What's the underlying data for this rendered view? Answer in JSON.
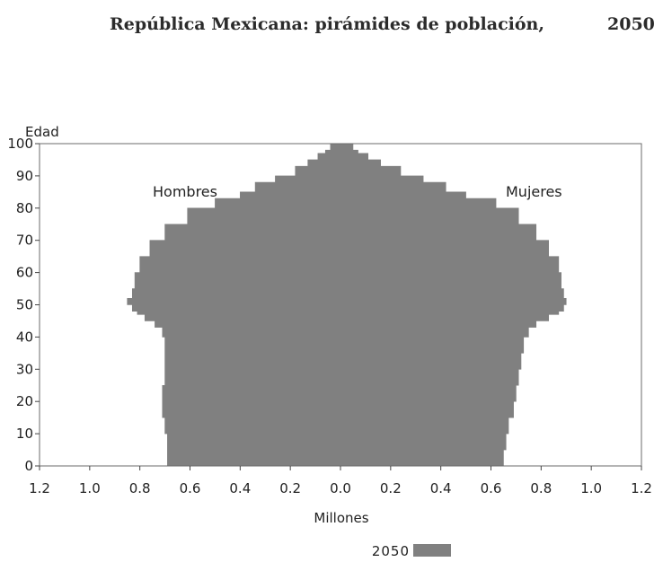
{
  "title": {
    "main": "República Mexicana: pirámides de población,",
    "year": "2050"
  },
  "chart_data": {
    "type": "area",
    "title": "República Mexicana: pirámides de población, 2050",
    "xlabel": "Millones",
    "ylabel": "Edad",
    "xlim": [
      -1.2,
      1.2
    ],
    "ylim": [
      0,
      100
    ],
    "x_ticks": [
      -1.2,
      -1.0,
      -0.8,
      -0.6,
      -0.4,
      -0.2,
      0.0,
      0.2,
      0.4,
      0.6,
      0.8,
      1.0,
      1.2
    ],
    "x_tick_labels": [
      "1.2",
      "1.0",
      "0.8",
      "0.6",
      "0.4",
      "0.2",
      "0.0",
      "0.2",
      "0.4",
      "0.6",
      "0.8",
      "1.0",
      "1.2"
    ],
    "y_ticks": [
      0,
      10,
      20,
      30,
      40,
      50,
      60,
      70,
      80,
      90,
      100
    ],
    "y_tick_labels": [
      "0",
      "10",
      "20",
      "30",
      "40",
      "50",
      "60",
      "70",
      "80",
      "90",
      "100"
    ],
    "annotations": {
      "left": "Hombres",
      "right": "Mujeres"
    },
    "legend": {
      "label": "2050",
      "color": "#808080",
      "position": "bottom"
    },
    "fill_color": "#808080",
    "ages": [
      0,
      5,
      10,
      15,
      20,
      25,
      30,
      35,
      40,
      43,
      45,
      47,
      48,
      50,
      52,
      55,
      60,
      65,
      70,
      75,
      80,
      83,
      85,
      88,
      90,
      93,
      95,
      97,
      98,
      100
    ],
    "series": [
      {
        "name": "Hombres",
        "values": [
          0.69,
          0.69,
          0.7,
          0.71,
          0.71,
          0.7,
          0.7,
          0.7,
          0.71,
          0.74,
          0.78,
          0.81,
          0.83,
          0.85,
          0.83,
          0.82,
          0.8,
          0.76,
          0.7,
          0.61,
          0.5,
          0.4,
          0.34,
          0.26,
          0.18,
          0.13,
          0.09,
          0.06,
          0.04,
          0.01
        ]
      },
      {
        "name": "Mujeres",
        "values": [
          0.65,
          0.66,
          0.67,
          0.69,
          0.7,
          0.71,
          0.72,
          0.73,
          0.75,
          0.78,
          0.83,
          0.87,
          0.89,
          0.9,
          0.89,
          0.88,
          0.87,
          0.83,
          0.78,
          0.71,
          0.62,
          0.5,
          0.42,
          0.33,
          0.24,
          0.16,
          0.11,
          0.07,
          0.05,
          0.02
        ]
      }
    ]
  }
}
